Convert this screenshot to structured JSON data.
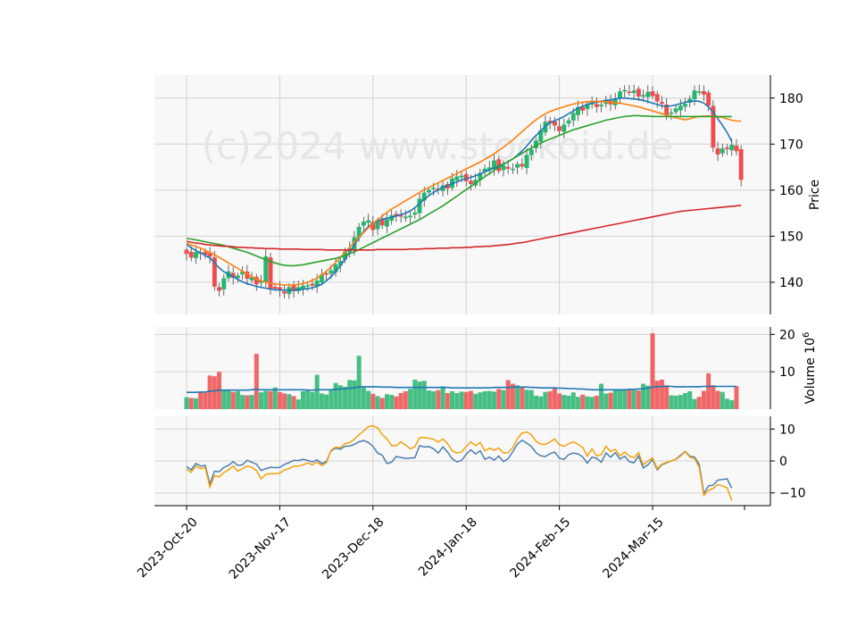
{
  "chart_data": {
    "type": "candlestick",
    "watermark": "(c)2024 www.stockoid.de",
    "colors": {
      "up": "#26b56e",
      "down": "#ef4d4d",
      "ma_fast": "#1f77b4",
      "ma_mid": "#ff7f0e",
      "ma_slow": "#2ca02c",
      "ma_long": "#d62728",
      "vol_ma": "#1f77b4",
      "osc_a": "#4a7fb0",
      "osc_b": "#f2a20c",
      "grid": "#d3d3d3",
      "panel_bg": "#f8f8f8"
    },
    "x_tick_labels": [
      "2023-Oct-20",
      "2023-Nov-17",
      "2023-Dec-18",
      "2024-Jan-18",
      "2024-Feb-15",
      "2024-Mar-15"
    ],
    "x_tick_index": [
      0,
      20,
      40,
      60,
      80,
      100
    ],
    "price_panel": {
      "ylabel": "Price",
      "ylim": [
        133,
        185
      ],
      "yticks": [
        140,
        150,
        160,
        170,
        180
      ],
      "close": [
        146.2,
        145.4,
        146.5,
        146.4,
        146,
        145.6,
        139.1,
        138.2,
        140.8,
        142.3,
        141,
        141.4,
        142.3,
        140.8,
        141,
        139.6,
        140.3,
        145.6,
        138.7,
        138.7,
        138.3,
        137.6,
        138.9,
        138.1,
        138.9,
        139.2,
        139.3,
        139.3,
        140.3,
        141.7,
        141.7,
        142.5,
        143.8,
        144.6,
        146.6,
        147.4,
        149.7,
        152,
        153.1,
        153.4,
        151.4,
        153.3,
        152.4,
        153.6,
        154.5,
        154.4,
        154.3,
        154.2,
        154.4,
        155.1,
        158.1,
        159.4,
        160,
        160.5,
        160.1,
        161,
        160.4,
        162.5,
        162.9,
        163.1,
        162,
        161.4,
        162.2,
        163.7,
        164.6,
        164.9,
        166.4,
        164.2,
        165.3,
        164.7,
        164.6,
        165.6,
        165.2,
        167.6,
        168.8,
        170.7,
        172.9,
        174.8,
        174.6,
        174.1,
        172.9,
        174.2,
        175.1,
        176.7,
        178,
        177.3,
        178.7,
        179,
        178.1,
        178.5,
        179.6,
        178.7,
        179.7,
        181.4,
        181.7,
        181.2,
        181.6,
        180.4,
        180.6,
        181.3,
        180.5,
        179.3,
        178.8,
        176.4,
        176.8,
        177.7,
        178.3,
        178.7,
        179.8,
        181.6,
        181.4,
        180.8,
        178.4,
        169.3,
        167.8,
        169,
        169,
        169.8,
        168.5,
        162.3
      ]
    },
    "moving_averages": [
      {
        "values": [
          148.2,
          147.5,
          146.9,
          146.4,
          145.8,
          145.3,
          144.2,
          143.1,
          142.3,
          141.7,
          141.2,
          140.6,
          140.1,
          139.7,
          139.4,
          139.1,
          138.9,
          138.7,
          138.5,
          138.4,
          138.3,
          138.3,
          138.3,
          138.3,
          138.4,
          138.5,
          138.6,
          138.8,
          139.1,
          139.6,
          140.3,
          141.2,
          142.3,
          143.6,
          145.0,
          146.6,
          148.1,
          149.6,
          151,
          152.1,
          152.8,
          153.3,
          153.7,
          153.9,
          154.1,
          154.4,
          154.7,
          155,
          155.5,
          156.2,
          157.1,
          158,
          158.8,
          159.5,
          160.1,
          160.6,
          161,
          161.4,
          161.8,
          162.2,
          162.5,
          162.8,
          163.1,
          163.5,
          164,
          164.4,
          164.8,
          165.2,
          165.7,
          166.2,
          166.8,
          167.6,
          168.5,
          169.6,
          170.8,
          171.9,
          172.9,
          173.9,
          174.6,
          175.1,
          175.5,
          176,
          176.6,
          177.2,
          177.8,
          178.2,
          178.6,
          178.9,
          179.1,
          179.3,
          179.5,
          179.6,
          179.8,
          180,
          180,
          179.9,
          179.8,
          179.7,
          179.5,
          179.2,
          178.9,
          178.6,
          178.3,
          178.2,
          178.3,
          178.5,
          178.8,
          179.1,
          179.3,
          179.4,
          179.3,
          178.9,
          178.1,
          176.9,
          175.5,
          174.1,
          172.5,
          170.6
        ]
      },
      {
        "values": [
          148.5,
          148.1,
          147.8,
          147.4,
          146.9,
          146.5,
          146,
          145.4,
          144.8,
          144.2,
          143.6,
          143,
          142.4,
          141.8,
          141.2,
          140.7,
          140.3,
          140,
          139.8,
          139.6,
          139.5,
          139.4,
          139.4,
          139.4,
          139.5,
          139.7,
          140,
          140.4,
          140.9,
          141.6,
          142.4,
          143.3,
          144.3,
          145.4,
          146.5,
          147.6,
          148.7,
          149.8,
          150.8,
          151.8,
          152.7,
          153.6,
          154.4,
          155.2,
          155.9,
          156.5,
          157.1,
          157.7,
          158.3,
          158.9,
          159.5,
          160.1,
          160.6,
          161.1,
          161.6,
          162.1,
          162.6,
          163.1,
          163.6,
          164.1,
          164.6,
          165.1,
          165.6,
          166.1,
          166.7,
          167.3,
          167.9,
          168.6,
          169.3,
          170.1,
          170.9,
          171.8,
          172.7,
          173.6,
          174.5,
          175.3,
          176,
          176.6,
          177.1,
          177.5,
          177.8,
          178.1,
          178.4,
          178.7,
          178.9,
          179.1,
          179.2,
          179.3,
          179.3,
          179.3,
          179.2,
          179.1,
          179,
          178.9,
          178.7,
          178.5,
          178.3,
          178.1,
          177.8,
          177.5,
          177.2,
          176.9,
          176.6,
          176.3,
          176,
          175.7,
          175.5,
          175.3,
          175.5,
          175.8,
          176,
          176.1,
          176.1,
          176,
          175.9,
          175.8,
          175.5,
          175.2,
          175.0,
          175.0
        ]
      },
      {
        "values": [
          149.5,
          149.4,
          149.2,
          149,
          148.8,
          148.6,
          148.4,
          148.2,
          148,
          147.7,
          147.4,
          147.1,
          146.8,
          146.5,
          146.1,
          145.7,
          145.3,
          144.9,
          144.5,
          144.2,
          143.9,
          143.7,
          143.6,
          143.6,
          143.7,
          143.8,
          144,
          144.2,
          144.4,
          144.6,
          144.8,
          145,
          145.2,
          145.5,
          145.8,
          146.2,
          146.6,
          147.1,
          147.6,
          148.1,
          148.6,
          149.1,
          149.6,
          150.1,
          150.6,
          151.1,
          151.6,
          152.1,
          152.6,
          153.1,
          153.6,
          154.2,
          154.8,
          155.4,
          156,
          156.6,
          157.3,
          158,
          158.7,
          159.4,
          160.1,
          160.8,
          161.5,
          162.2,
          162.9,
          163.6,
          164.3,
          165,
          165.6,
          166.2,
          166.8,
          167.4,
          168,
          168.6,
          169.2,
          169.7,
          170.2,
          170.7,
          171.1,
          171.5,
          171.9,
          172.3,
          172.7,
          173.1,
          173.4,
          173.7,
          174,
          174.3,
          174.6,
          174.9,
          175.2,
          175.4,
          175.6,
          175.8,
          176,
          176.1,
          176.2,
          176.2,
          176.1,
          176.1,
          176.0,
          176.0,
          176.0,
          176.0,
          176.0,
          176.0,
          176.0,
          176.0,
          176.0,
          176.0,
          176.0,
          176.0,
          176.0,
          176.0,
          176.0,
          176.0,
          176.0,
          176.0
        ]
      },
      {
        "values": [
          148.9,
          148.7,
          148.5,
          148.4,
          148.2,
          148.1,
          148,
          147.9,
          147.8,
          147.8,
          147.7,
          147.6,
          147.6,
          147.5,
          147.5,
          147.4,
          147.4,
          147.3,
          147.3,
          147.3,
          147.2,
          147.2,
          147.2,
          147.2,
          147.2,
          147.1,
          147.1,
          147.1,
          147.1,
          147.1,
          147,
          147,
          147,
          147,
          147,
          147,
          147,
          147,
          147,
          147,
          147,
          147.1,
          147.1,
          147.1,
          147.1,
          147.1,
          147.1,
          147.1,
          147.2,
          147.2,
          147.2,
          147.3,
          147.3,
          147.3,
          147.4,
          147.4,
          147.4,
          147.5,
          147.5,
          147.5,
          147.6,
          147.6,
          147.7,
          147.7,
          147.8,
          147.8,
          147.9,
          148,
          148.1,
          148.2,
          148.3,
          148.5,
          148.6,
          148.8,
          149,
          149.2,
          149.4,
          149.6,
          149.8,
          150,
          150.2,
          150.4,
          150.6,
          150.8,
          151,
          151.2,
          151.4,
          151.6,
          151.8,
          152,
          152.2,
          152.4,
          152.6,
          152.8,
          153,
          153.2,
          153.4,
          153.6,
          153.8,
          154,
          154.2,
          154.4,
          154.6,
          154.8,
          155,
          155.2,
          155.4,
          155.5,
          155.6,
          155.7,
          155.8,
          155.9,
          156,
          156.1,
          156.2,
          156.3,
          156.4,
          156.5,
          156.6,
          156.7
        ]
      }
    ],
    "volume_panel": {
      "ylabel": "Volume  10",
      "ylabel_exp": "6",
      "ylim": [
        0,
        22
      ],
      "yticks": [
        10,
        20
      ],
      "values": [
        3.2,
        3,
        2.9,
        4.6,
        4.4,
        9,
        8.8,
        10,
        5.2,
        4.9,
        4.6,
        4.8,
        3.8,
        3.7,
        3.8,
        14.8,
        4.5,
        4.9,
        4.8,
        5.8,
        4.6,
        4.2,
        4,
        3.5,
        2.6,
        4.8,
        4.9,
        4.6,
        9.2,
        4.2,
        3.9,
        5.1,
        7,
        6.4,
        6,
        7.8,
        7.7,
        14.3,
        5.8,
        4.9,
        4.1,
        3.5,
        3,
        4,
        3.8,
        3.4,
        4.3,
        4.8,
        5.4,
        7.9,
        7.4,
        7.6,
        5,
        4.8,
        5.1,
        6.1,
        4.3,
        4.8,
        4.3,
        4.7,
        4.6,
        4.9,
        4.1,
        4.5,
        4.8,
        4.9,
        4.7,
        5.4,
        5.1,
        7.8,
        6.8,
        6.4,
        5.8,
        5.2,
        5.1,
        3.6,
        3.4,
        4.6,
        4.8,
        5.8,
        4.2,
        3.8,
        3.6,
        4.5,
        3.3,
        3.9,
        3.4,
        3.3,
        3.6,
        6.8,
        4.2,
        4.4,
        5.1,
        5.2,
        5.3,
        5.2,
        5.1,
        5,
        6.8,
        6.3,
        20.3,
        7.6,
        7.9,
        6.4,
        3.7,
        3.6,
        3.8,
        4.3,
        4.8,
        2.7,
        3.3,
        4.9,
        9.6,
        6.4,
        4.9,
        4.6,
        2.8,
        2.4,
        6.2
      ],
      "ma": [
        4.5,
        4.5,
        4.5,
        4.6,
        4.6,
        4.8,
        4.9,
        5.1,
        5.1,
        5.1,
        5.1,
        5.1,
        5.1,
        5.1,
        5.2,
        5.3,
        5.2,
        5.2,
        5.2,
        5.2,
        5.2,
        5.2,
        5.2,
        5.2,
        5.2,
        5.2,
        5.1,
        5.1,
        5.2,
        5.2,
        5.2,
        5.2,
        5.3,
        5.4,
        5.5,
        5.6,
        5.7,
        6,
        6,
        6,
        6,
        6,
        5.9,
        5.9,
        5.9,
        5.8,
        5.8,
        5.8,
        5.8,
        5.8,
        5.8,
        5.8,
        5.8,
        5.8,
        5.8,
        5.8,
        5.8,
        5.7,
        5.7,
        5.7,
        5.7,
        5.7,
        5.7,
        5.7,
        5.7,
        5.7,
        5.8,
        5.8,
        5.8,
        5.8,
        5.9,
        5.9,
        5.9,
        5.9,
        5.8,
        5.8,
        5.7,
        5.7,
        5.7,
        5.7,
        5.6,
        5.6,
        5.5,
        5.5,
        5.4,
        5.4,
        5.3,
        5.2,
        5.2,
        5.2,
        5.2,
        5.2,
        5.2,
        5.2,
        5.2,
        5.3,
        5.3,
        5.4,
        5.5,
        5.6,
        5.9,
        6,
        6.1,
        6.1,
        6.1,
        6,
        6,
        6,
        6,
        6,
        6,
        6.1,
        6.1,
        6.1,
        6.1,
        6.1,
        6.1,
        6.1,
        6.1
      ]
    },
    "oscillator_panel": {
      "ylim": [
        -14,
        14
      ],
      "yticks": [
        -10,
        0,
        10
      ],
      "series": [
        {
          "values": [
            -1.8,
            -2.8,
            -0.8,
            -1.6,
            -1.4,
            -7.2,
            -3.2,
            -3.4,
            -2,
            -1.4,
            -0.2,
            -1.4,
            -1.2,
            0.2,
            -0.4,
            -1,
            -3,
            -2.4,
            -2,
            -2.1,
            -2,
            -1.1,
            -0.5,
            0.2,
            0.1,
            0.5,
            0.2,
            -0.3,
            0.3,
            -0.8,
            -0.2,
            3.2,
            4,
            3.7,
            4.6,
            4.7,
            5.2,
            6,
            6.4,
            5.8,
            4.6,
            2.5,
            1.8,
            -0.8,
            -0.4,
            1.4,
            1.1,
            0.8,
            0.9,
            1,
            4.8,
            4.4,
            4.5,
            3.8,
            2.5,
            4.4,
            2.8,
            0.7,
            -0.3,
            0.2,
            2.1,
            3.5,
            2.2,
            3.2,
            0.5,
            1.2,
            0.3,
            1.5,
            -0.2,
            0.7,
            2.9,
            5.3,
            6.5,
            5.6,
            4.5,
            2.6,
            1.6,
            1.4,
            2.3,
            2.8,
            0.9,
            0.5,
            2,
            2.5,
            2.2,
            1.3,
            -0.7,
            1.2,
            0.8,
            -0.4,
            2.5,
            1.2,
            2.6,
            0.6,
            1.5,
            -0.2,
            -0.6,
            1.6,
            -2.2,
            -1.2,
            0.5,
            -2.8,
            -1.2,
            -0.6,
            0,
            0.6,
            1.8,
            3,
            1.5,
            1.2,
            -1,
            -10.2,
            -7.8,
            -7.6,
            -6,
            -5.8,
            -5.6,
            -8.5
          ]
        },
        {
          "values": [
            -2.6,
            -3.6,
            -1.6,
            -2.4,
            -2.1,
            -8.2,
            -4.6,
            -5,
            -3.6,
            -2.8,
            -1.6,
            -3.2,
            -2.4,
            -1.6,
            -2,
            -3,
            -5.6,
            -4.2,
            -4,
            -4,
            -3.8,
            -2.8,
            -2.4,
            -1.6,
            -1.6,
            -1.2,
            -0.6,
            -1.2,
            -0.4,
            -1.4,
            -0.6,
            3.4,
            4.3,
            4.2,
            5.4,
            5.8,
            6.8,
            8.2,
            9.4,
            10.8,
            11,
            10.4,
            8.3,
            6.9,
            4.8,
            4.8,
            6,
            5,
            3.8,
            4.5,
            7.3,
            7.4,
            7.1,
            6.8,
            5.9,
            6.9,
            5.5,
            3.2,
            2.5,
            2.8,
            4.5,
            6,
            4.8,
            5.8,
            3.2,
            4,
            3.4,
            4.1,
            2.5,
            2.6,
            4.2,
            7,
            8.8,
            9.1,
            8.2,
            6.2,
            5.3,
            5.2,
            6,
            6.9,
            5.1,
            4.6,
            5.4,
            6,
            5.2,
            4.3,
            1.5,
            3.8,
            1.6,
            2,
            4.6,
            3,
            3.6,
            1.6,
            2.8,
            1.6,
            1,
            2.6,
            -1.2,
            0,
            1,
            -2.4,
            -1,
            -0.4,
            0,
            0.5,
            1.5,
            2.9,
            1.2,
            0.8,
            -2,
            -10.8,
            -9.2,
            -8.6,
            -7.4,
            -7.8,
            -8.4,
            -12.4
          ]
        }
      ]
    }
  }
}
